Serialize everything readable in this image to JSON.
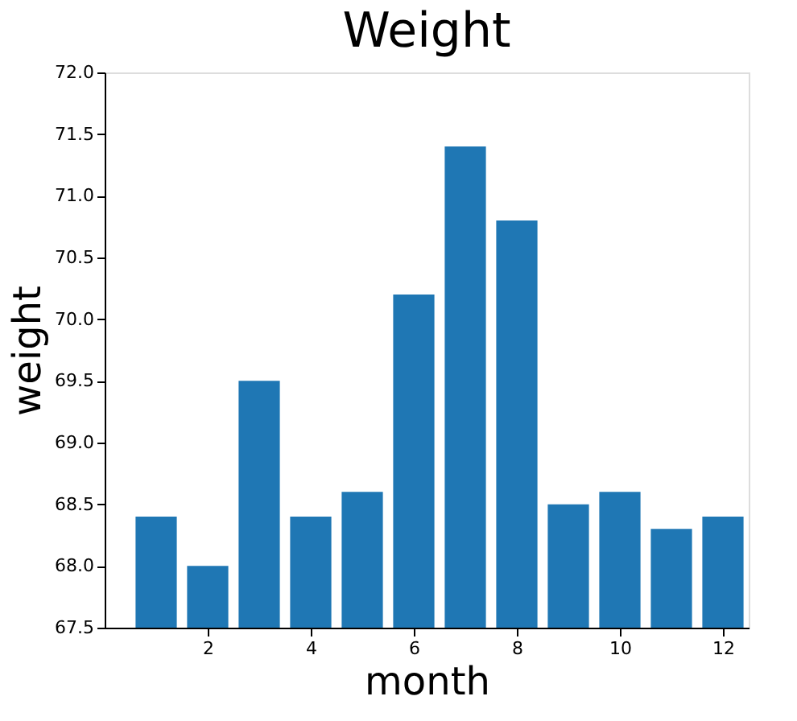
{
  "chart_data": {
    "type": "bar",
    "title": "Weight",
    "xlabel": "month",
    "ylabel": "weight",
    "x": [
      1,
      2,
      3,
      4,
      5,
      6,
      7,
      8,
      9,
      10,
      11,
      12
    ],
    "values": [
      68.4,
      68.0,
      69.5,
      68.4,
      68.6,
      70.2,
      71.4,
      70.8,
      68.5,
      68.6,
      68.3,
      68.4
    ],
    "color": "#1f77b4",
    "xlim": [
      0.0,
      12.5
    ],
    "xticks": [
      2,
      4,
      6,
      8,
      10,
      12
    ],
    "ylim": [
      67.5,
      72.0
    ],
    "yticks": [
      {
        "value": 67.5,
        "label": "67.5"
      },
      {
        "value": 68,
        "label": "68.0"
      },
      {
        "value": 68.5,
        "label": "68.5"
      },
      {
        "value": 69,
        "label": "69.0"
      },
      {
        "value": 69.5,
        "label": "69.5"
      },
      {
        "value": 70,
        "label": "70.0"
      },
      {
        "value": 70.5,
        "label": "70.5"
      },
      {
        "value": 71,
        "label": "71.0"
      },
      {
        "value": 71.5,
        "label": "71.5"
      },
      {
        "value": 72,
        "label": "72.0"
      }
    ],
    "grid": false
  }
}
